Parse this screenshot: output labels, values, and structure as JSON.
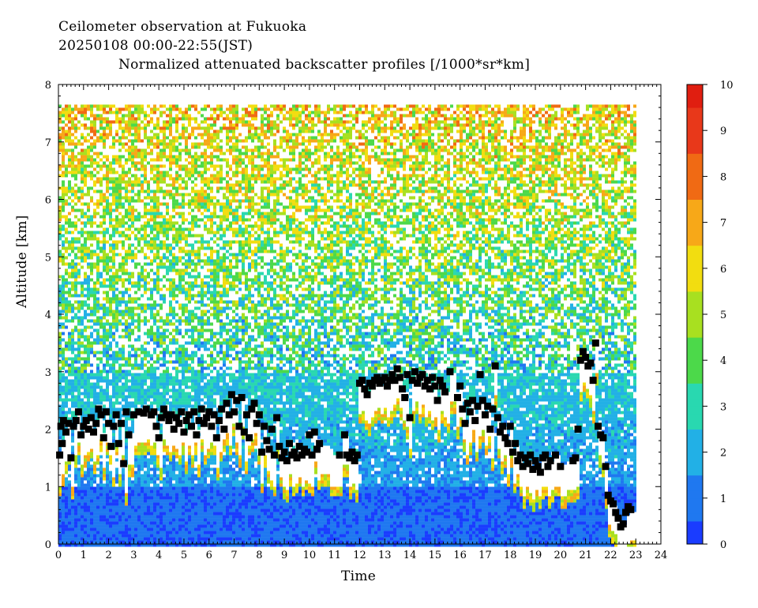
{
  "header": {
    "line1": "Ceilometer observation at Fukuoka",
    "line2": "20250108  00:00-22:55(JST)",
    "line3": "Normalized attenuated backscatter profiles [/1000*sr*km]"
  },
  "chart_data": {
    "type": "heatmap",
    "xlabel": "Time",
    "ylabel": "Altitude [km]",
    "xlim": [
      0,
      24
    ],
    "ylim": [
      0,
      8
    ],
    "x_ticks": [
      "0",
      "1",
      "2",
      "3",
      "4",
      "5",
      "6",
      "7",
      "8",
      "9",
      "10",
      "11",
      "12",
      "13",
      "14",
      "15",
      "16",
      "17",
      "18",
      "19",
      "20",
      "21",
      "22",
      "23",
      "24"
    ],
    "y_ticks": [
      "0",
      "1",
      "2",
      "3",
      "4",
      "5",
      "6",
      "7",
      "8"
    ],
    "data_end_time": 22.92,
    "data_top_altitude": 7.65,
    "colorbar": {
      "min": 0,
      "max": 10,
      "ticks": [
        "0",
        "1",
        "2",
        "3",
        "4",
        "5",
        "6",
        "7",
        "8",
        "9",
        "10"
      ],
      "colors": [
        "#1a3cff",
        "#1f78f0",
        "#22b0e6",
        "#29d8b0",
        "#4cd94a",
        "#a8e020",
        "#f2dd10",
        "#f7a818",
        "#f06a14",
        "#e8381a",
        "#e01e10"
      ]
    },
    "cloud_base_series": {
      "name": "",
      "marker": "filled-square",
      "points": [
        [
          0.05,
          1.55
        ],
        [
          0.1,
          2.05
        ],
        [
          0.15,
          1.75
        ],
        [
          0.2,
          2.15
        ],
        [
          0.3,
          1.95
        ],
        [
          0.4,
          2.1
        ],
        [
          0.5,
          1.5
        ],
        [
          0.6,
          2.05
        ],
        [
          0.7,
          2.15
        ],
        [
          0.8,
          2.3
        ],
        [
          0.9,
          1.9
        ],
        [
          1.0,
          2.05
        ],
        [
          1.1,
          2.15
        ],
        [
          1.2,
          2.0
        ],
        [
          1.3,
          2.2
        ],
        [
          1.4,
          1.95
        ],
        [
          1.5,
          2.1
        ],
        [
          1.6,
          2.35
        ],
        [
          1.7,
          2.25
        ],
        [
          1.8,
          1.85
        ],
        [
          1.9,
          2.3
        ],
        [
          2.0,
          2.1
        ],
        [
          2.1,
          1.7
        ],
        [
          2.2,
          2.05
        ],
        [
          2.3,
          2.25
        ],
        [
          2.4,
          1.75
        ],
        [
          2.5,
          2.1
        ],
        [
          2.6,
          1.4
        ],
        [
          2.7,
          2.3
        ],
        [
          2.8,
          1.9
        ],
        [
          3.0,
          2.25
        ],
        [
          3.2,
          2.3
        ],
        [
          3.4,
          2.28
        ],
        [
          3.5,
          2.35
        ],
        [
          3.7,
          2.25
        ],
        [
          3.8,
          2.3
        ],
        [
          3.9,
          2.05
        ],
        [
          4.0,
          1.85
        ],
        [
          4.1,
          2.2
        ],
        [
          4.2,
          2.35
        ],
        [
          4.3,
          2.25
        ],
        [
          4.4,
          2.15
        ],
        [
          4.5,
          2.25
        ],
        [
          4.6,
          2.0
        ],
        [
          4.7,
          2.2
        ],
        [
          4.8,
          2.1
        ],
        [
          4.9,
          2.3
        ],
        [
          5.0,
          1.95
        ],
        [
          5.1,
          2.15
        ],
        [
          5.2,
          2.25
        ],
        [
          5.3,
          2.05
        ],
        [
          5.4,
          2.3
        ],
        [
          5.5,
          1.9
        ],
        [
          5.6,
          2.15
        ],
        [
          5.7,
          2.35
        ],
        [
          5.8,
          2.1
        ],
        [
          5.9,
          2.2
        ],
        [
          6.0,
          2.3
        ],
        [
          6.1,
          2.05
        ],
        [
          6.2,
          2.25
        ],
        [
          6.3,
          1.85
        ],
        [
          6.4,
          2.15
        ],
        [
          6.5,
          2.35
        ],
        [
          6.6,
          2.0
        ],
        [
          6.7,
          2.45
        ],
        [
          6.8,
          2.25
        ],
        [
          6.9,
          2.6
        ],
        [
          7.0,
          2.3
        ],
        [
          7.1,
          2.5
        ],
        [
          7.2,
          2.05
        ],
        [
          7.3,
          2.55
        ],
        [
          7.4,
          1.95
        ],
        [
          7.5,
          2.25
        ],
        [
          7.6,
          1.85
        ],
        [
          7.7,
          2.35
        ],
        [
          7.8,
          2.45
        ],
        [
          7.9,
          2.1
        ],
        [
          8.0,
          2.25
        ],
        [
          8.1,
          1.6
        ],
        [
          8.2,
          2.05
        ],
        [
          8.3,
          1.8
        ],
        [
          8.4,
          1.65
        ],
        [
          8.5,
          2.0
        ],
        [
          8.6,
          1.55
        ],
        [
          8.7,
          2.2
        ],
        [
          8.8,
          1.7
        ],
        [
          8.9,
          1.5
        ],
        [
          9.0,
          1.6
        ],
        [
          9.1,
          1.45
        ],
        [
          9.2,
          1.75
        ],
        [
          9.3,
          1.55
        ],
        [
          9.4,
          1.6
        ],
        [
          9.5,
          1.5
        ],
        [
          9.6,
          1.7
        ],
        [
          9.7,
          1.55
        ],
        [
          9.8,
          1.65
        ],
        [
          9.9,
          1.6
        ],
        [
          10.0,
          1.9
        ],
        [
          10.1,
          1.55
        ],
        [
          10.2,
          1.95
        ],
        [
          10.3,
          1.65
        ],
        [
          10.4,
          1.75
        ],
        [
          11.2,
          1.55
        ],
        [
          11.4,
          1.9
        ],
        [
          11.5,
          1.55
        ],
        [
          11.6,
          1.5
        ],
        [
          11.7,
          1.6
        ],
        [
          11.8,
          1.45
        ],
        [
          11.9,
          1.55
        ],
        [
          12.0,
          2.8
        ],
        [
          12.1,
          2.85
        ],
        [
          12.2,
          2.7
        ],
        [
          12.3,
          2.6
        ],
        [
          12.4,
          2.8
        ],
        [
          12.5,
          2.75
        ],
        [
          12.6,
          2.85
        ],
        [
          12.7,
          2.9
        ],
        [
          12.8,
          2.8
        ],
        [
          12.9,
          2.85
        ],
        [
          13.0,
          2.9
        ],
        [
          13.1,
          2.75
        ],
        [
          13.2,
          2.85
        ],
        [
          13.3,
          2.95
        ],
        [
          13.4,
          2.85
        ],
        [
          13.5,
          3.05
        ],
        [
          13.6,
          2.9
        ],
        [
          13.7,
          2.7
        ],
        [
          13.8,
          2.55
        ],
        [
          13.9,
          2.95
        ],
        [
          14.0,
          2.2
        ],
        [
          14.1,
          2.85
        ],
        [
          14.2,
          3.0
        ],
        [
          14.3,
          2.8
        ],
        [
          14.4,
          2.9
        ],
        [
          14.5,
          2.95
        ],
        [
          14.6,
          2.75
        ],
        [
          14.7,
          2.85
        ],
        [
          14.8,
          2.7
        ],
        [
          14.9,
          2.9
        ],
        [
          15.0,
          2.75
        ],
        [
          15.1,
          2.5
        ],
        [
          15.2,
          2.85
        ],
        [
          15.3,
          2.75
        ],
        [
          15.4,
          2.65
        ],
        [
          15.6,
          3.0
        ],
        [
          15.9,
          2.55
        ],
        [
          16.0,
          2.75
        ],
        [
          16.1,
          2.35
        ],
        [
          16.2,
          2.1
        ],
        [
          16.3,
          2.45
        ],
        [
          16.4,
          2.3
        ],
        [
          16.5,
          2.5
        ],
        [
          16.6,
          2.15
        ],
        [
          16.7,
          2.4
        ],
        [
          16.8,
          2.95
        ],
        [
          16.9,
          2.5
        ],
        [
          17.0,
          2.25
        ],
        [
          17.1,
          2.4
        ],
        [
          17.2,
          2.0
        ],
        [
          17.3,
          2.35
        ],
        [
          17.4,
          3.1
        ],
        [
          17.5,
          2.2
        ],
        [
          17.6,
          1.95
        ],
        [
          17.7,
          2.05
        ],
        [
          17.8,
          1.85
        ],
        [
          17.9,
          1.75
        ],
        [
          18.0,
          2.05
        ],
        [
          18.1,
          1.6
        ],
        [
          18.2,
          1.75
        ],
        [
          18.3,
          1.45
        ],
        [
          18.4,
          1.55
        ],
        [
          18.5,
          1.35
        ],
        [
          18.6,
          1.5
        ],
        [
          18.7,
          1.4
        ],
        [
          18.8,
          1.55
        ],
        [
          18.9,
          1.3
        ],
        [
          19.0,
          1.45
        ],
        [
          19.1,
          1.35
        ],
        [
          19.2,
          1.25
        ],
        [
          19.3,
          1.5
        ],
        [
          19.4,
          1.55
        ],
        [
          19.5,
          1.35
        ],
        [
          19.6,
          1.45
        ],
        [
          19.8,
          1.55
        ],
        [
          20.0,
          1.35
        ],
        [
          20.5,
          1.45
        ],
        [
          20.6,
          1.5
        ],
        [
          20.7,
          2.0
        ],
        [
          20.8,
          3.2
        ],
        [
          20.9,
          3.35
        ],
        [
          21.0,
          3.25
        ],
        [
          21.1,
          3.1
        ],
        [
          21.2,
          3.15
        ],
        [
          21.3,
          2.85
        ],
        [
          21.4,
          3.5
        ],
        [
          21.5,
          2.05
        ],
        [
          21.6,
          1.9
        ],
        [
          21.7,
          1.85
        ],
        [
          21.8,
          1.35
        ],
        [
          21.9,
          0.85
        ],
        [
          22.0,
          0.75
        ],
        [
          22.1,
          0.7
        ],
        [
          22.2,
          0.55
        ],
        [
          22.3,
          0.45
        ],
        [
          22.4,
          0.3
        ],
        [
          22.5,
          0.35
        ],
        [
          22.6,
          0.55
        ],
        [
          22.7,
          0.65
        ],
        [
          22.8,
          0.6
        ]
      ]
    }
  }
}
